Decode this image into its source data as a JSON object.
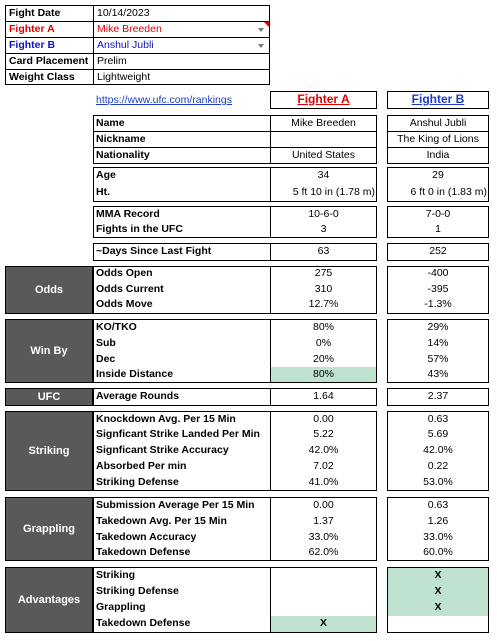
{
  "info": {
    "fight_date_label": "Fight Date",
    "fight_date": "10/14/2023",
    "fighter_a_label": "Fighter A",
    "fighter_a": "Mike Breeden",
    "fighter_b_label": "Fighter B",
    "fighter_b": "Anshul Jubli",
    "card_label": "Card Placement",
    "card": "Prelim",
    "weight_label": "Weight Class",
    "weight": "Lightweight"
  },
  "header": {
    "link": "https://www.ufc.com/rankings",
    "col_a": "Fighter A",
    "col_b": "Fighter B"
  },
  "profile": {
    "name_label": "Name",
    "name_a": "Mike Breeden",
    "name_b": "Anshul Jubli",
    "nick_label": "Nickname",
    "nick_a": "",
    "nick_b": "The King of Lions",
    "nat_label": "Nationality",
    "nat_a": "United States",
    "nat_b": "India"
  },
  "body": {
    "age_label": "Age",
    "age_a": "34",
    "age_b": "29",
    "ht_label": "Ht.",
    "ht_a": "5 ft 10 in (1.78 m)",
    "ht_b": "6 ft 0 in (1.83 m)"
  },
  "record": {
    "mma_label": "MMA Record",
    "mma_a": "10-6-0",
    "mma_b": "7-0-0",
    "ufc_label": "Fights in the UFC",
    "ufc_a": "3",
    "ufc_b": "1"
  },
  "days": {
    "label": "~Days Since Last Fight",
    "a": "63",
    "b": "252"
  },
  "odds": {
    "section": "Odds",
    "open_label": "Odds Open",
    "open_a": "275",
    "open_b": "-400",
    "current_label": "Odds Current",
    "current_a": "310",
    "current_b": "-395",
    "move_label": "Odds Move",
    "move_a": "12.7%",
    "move_b": "-1.3%"
  },
  "winby": {
    "section": "Win By",
    "ko_label": "KO/TKO",
    "ko_a": "80%",
    "ko_b": "29%",
    "sub_label": "Sub",
    "sub_a": "0%",
    "sub_b": "14%",
    "dec_label": "Dec",
    "dec_a": "20%",
    "dec_b": "57%",
    "inside_label": "Inside Distance",
    "inside_a": "80%",
    "inside_b": "43%"
  },
  "ufc": {
    "section": "UFC",
    "label": "Average Rounds",
    "a": "1.64",
    "b": "2.37"
  },
  "striking": {
    "section": "Striking",
    "kd_label": "Knockdown Avg. Per 15 Min",
    "kd_a": "0.00",
    "kd_b": "0.63",
    "ssl_label": "Signficant Strike Landed Per Min",
    "ssl_a": "5.22",
    "ssl_b": "5.69",
    "ssa_label": "Signficant Strike Accuracy",
    "ssa_a": "42.0%",
    "ssa_b": "42.0%",
    "abs_label": "Absorbed Per min",
    "abs_a": "7.02",
    "abs_b": "0.22",
    "def_label": "Striking Defense",
    "def_a": "41.0%",
    "def_b": "53.0%"
  },
  "grappling": {
    "section": "Grappling",
    "sub_label": "Submission Average  Per 15 Min",
    "sub_a": "0.00",
    "sub_b": "0.63",
    "td_label": "Takedown Avg. Per 15 Min",
    "td_a": "1.37",
    "td_b": "1.26",
    "tda_label": "Takedown Accuracy",
    "tda_a": "33.0%",
    "tda_b": "33.0%",
    "tdd_label": "Takedown Defense",
    "tdd_a": "62.0%",
    "tdd_b": "60.0%"
  },
  "advantages": {
    "section": "Advantages",
    "striking_label": "Striking",
    "striking_a": "",
    "striking_b": "X",
    "sdef_label": "Striking Defense",
    "sdef_a": "",
    "sdef_b": "X",
    "grap_label": "Grappling",
    "grap_a": "",
    "grap_b": "X",
    "tdd_label": "Takedown Defense",
    "tdd_a": "X",
    "tdd_b": ""
  },
  "colors": {
    "fighter_a": "#e00000",
    "fighter_b": "#1a3cc8",
    "section_bg": "#595959",
    "highlight": "#bfe3d0"
  }
}
